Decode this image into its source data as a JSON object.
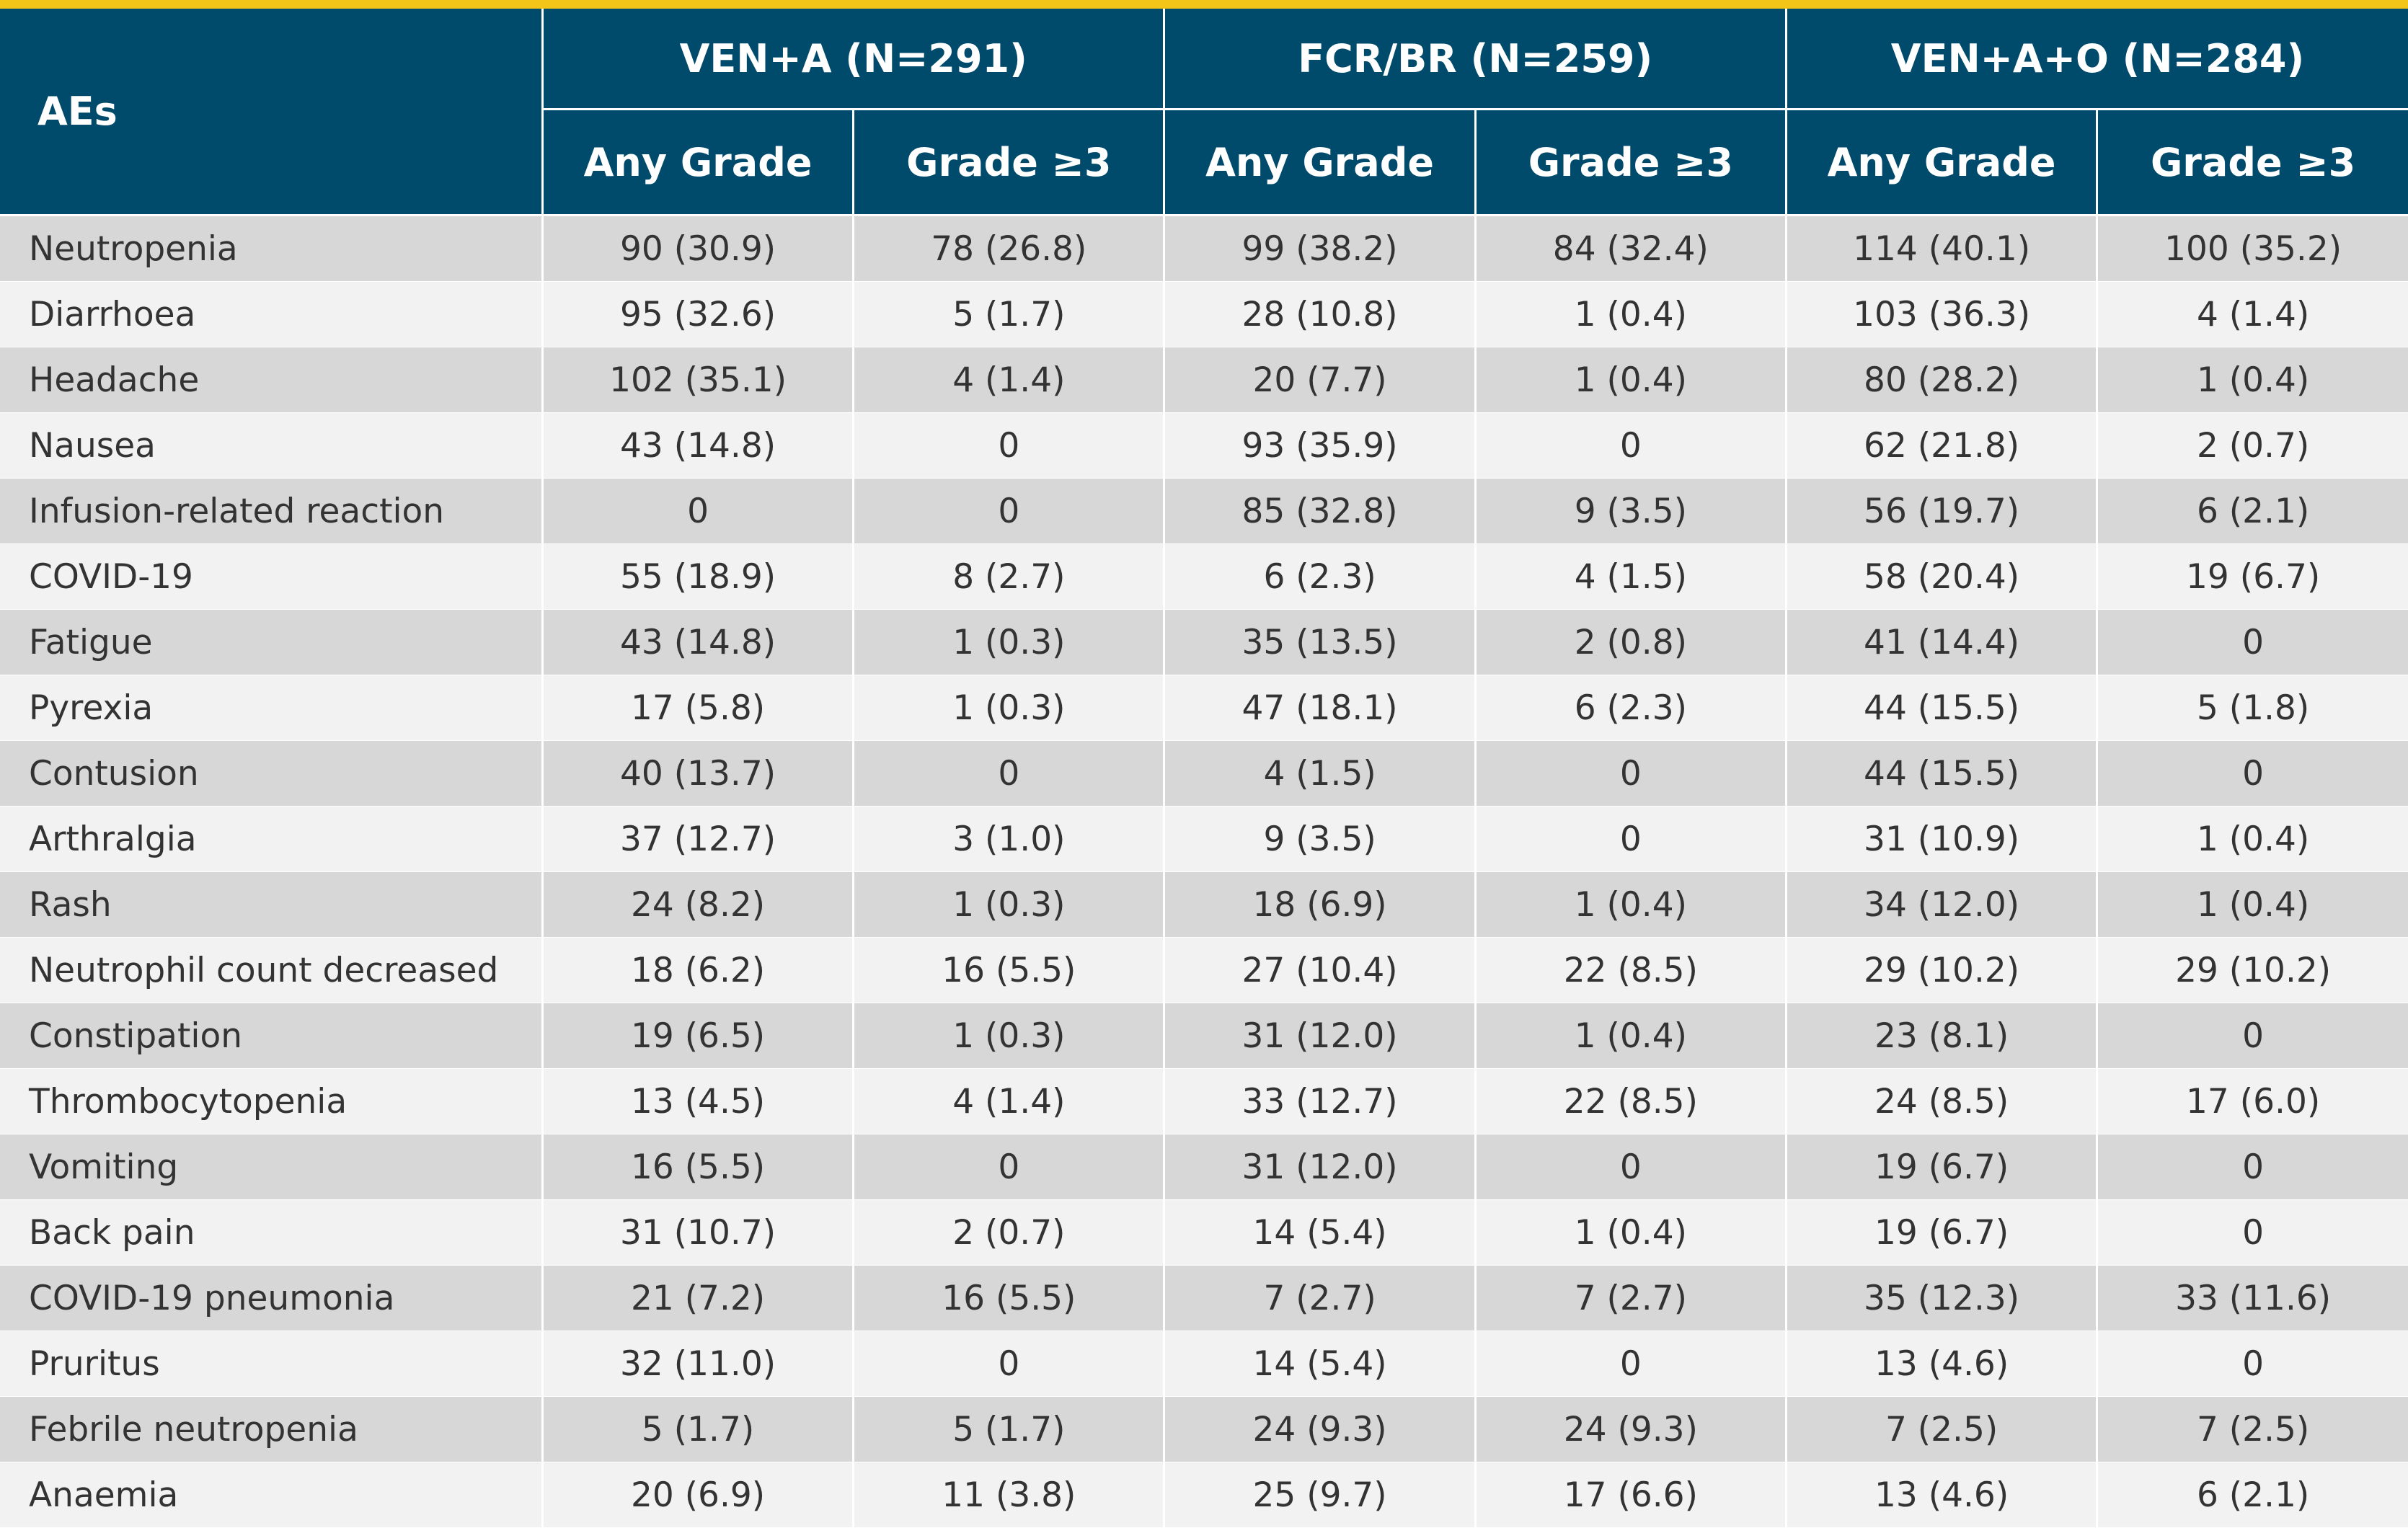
{
  "table": {
    "header": {
      "ae_label": "AEs",
      "groups": [
        "VEN+A (N=291)",
        "FCR/BR (N=259)",
        "VEN+A+O (N=284)"
      ],
      "subheaders": [
        "Any Grade",
        "Grade ≥3",
        "Any Grade",
        "Grade ≥3",
        "Any Grade",
        "Grade ≥3"
      ]
    },
    "rows": [
      {
        "ae": "Neutropenia",
        "v": [
          "90 (30.9)",
          "78 (26.8)",
          "99 (38.2)",
          "84 (32.4)",
          "114 (40.1)",
          "100 (35.2)"
        ]
      },
      {
        "ae": "Diarrhoea",
        "v": [
          "95 (32.6)",
          "5 (1.7)",
          "28 (10.8)",
          "1 (0.4)",
          "103 (36.3)",
          "4 (1.4)"
        ]
      },
      {
        "ae": "Headache",
        "v": [
          "102 (35.1)",
          "4 (1.4)",
          "20 (7.7)",
          "1 (0.4)",
          "80 (28.2)",
          "1 (0.4)"
        ]
      },
      {
        "ae": "Nausea",
        "v": [
          "43 (14.8)",
          "0",
          "93 (35.9)",
          "0",
          "62 (21.8)",
          "2 (0.7)"
        ]
      },
      {
        "ae": "Infusion-related reaction",
        "v": [
          "0",
          "0",
          "85 (32.8)",
          "9 (3.5)",
          "56 (19.7)",
          "6 (2.1)"
        ]
      },
      {
        "ae": "COVID-19",
        "v": [
          "55 (18.9)",
          "8 (2.7)",
          "6 (2.3)",
          "4 (1.5)",
          "58 (20.4)",
          "19 (6.7)"
        ]
      },
      {
        "ae": "Fatigue",
        "v": [
          "43 (14.8)",
          "1 (0.3)",
          "35 (13.5)",
          "2 (0.8)",
          "41 (14.4)",
          "0"
        ]
      },
      {
        "ae": "Pyrexia",
        "v": [
          "17 (5.8)",
          "1 (0.3)",
          "47 (18.1)",
          "6 (2.3)",
          "44 (15.5)",
          "5 (1.8)"
        ]
      },
      {
        "ae": "Contusion",
        "v": [
          "40 (13.7)",
          "0",
          "4 (1.5)",
          "0",
          "44 (15.5)",
          "0"
        ]
      },
      {
        "ae": "Arthralgia",
        "v": [
          "37 (12.7)",
          "3 (1.0)",
          "9 (3.5)",
          "0",
          "31 (10.9)",
          "1 (0.4)"
        ]
      },
      {
        "ae": "Rash",
        "v": [
          "24 (8.2)",
          "1 (0.3)",
          "18 (6.9)",
          "1 (0.4)",
          "34 (12.0)",
          "1 (0.4)"
        ]
      },
      {
        "ae": "Neutrophil count decreased",
        "v": [
          "18 (6.2)",
          "16 (5.5)",
          "27 (10.4)",
          "22 (8.5)",
          "29 (10.2)",
          "29 (10.2)"
        ]
      },
      {
        "ae": "Constipation",
        "v": [
          "19 (6.5)",
          "1 (0.3)",
          "31 (12.0)",
          "1 (0.4)",
          "23 (8.1)",
          "0"
        ]
      },
      {
        "ae": "Thrombocytopenia",
        "v": [
          "13 (4.5)",
          "4 (1.4)",
          "33 (12.7)",
          "22 (8.5)",
          "24 (8.5)",
          "17 (6.0)"
        ]
      },
      {
        "ae": "Vomiting",
        "v": [
          "16 (5.5)",
          "0",
          "31 (12.0)",
          "0",
          "19 (6.7)",
          "0"
        ]
      },
      {
        "ae": "Back pain",
        "v": [
          "31 (10.7)",
          "2 (0.7)",
          "14 (5.4)",
          "1 (0.4)",
          "19 (6.7)",
          "0"
        ]
      },
      {
        "ae": "COVID-19 pneumonia",
        "v": [
          "21 (7.2)",
          "16 (5.5)",
          "7 (2.7)",
          "7 (2.7)",
          "35 (12.3)",
          "33 (11.6)"
        ]
      },
      {
        "ae": "Pruritus",
        "v": [
          "32 (11.0)",
          "0",
          "14 (5.4)",
          "0",
          "13 (4.6)",
          "0"
        ]
      },
      {
        "ae": "Febrile neutropenia",
        "v": [
          "5 (1.7)",
          "5 (1.7)",
          "24 (9.3)",
          "24 (9.3)",
          "7 (2.5)",
          "7 (2.5)"
        ]
      },
      {
        "ae": "Anaemia",
        "v": [
          "20 (6.9)",
          "11 (3.8)",
          "25 (9.7)",
          "17 (6.6)",
          "13 (4.6)",
          "6 (2.1)"
        ]
      }
    ]
  }
}
